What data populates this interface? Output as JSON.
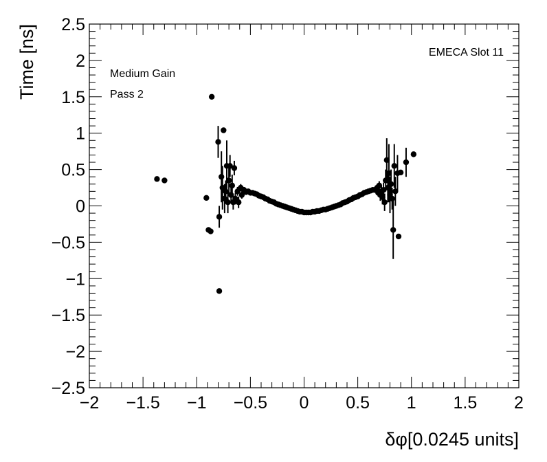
{
  "chart_data": {
    "type": "scatter",
    "xlabel": "δφ[0.0245 units]",
    "ylabel": "Time [ns]",
    "xlim": [
      -2,
      2
    ],
    "ylim": [
      -2.5,
      2.5
    ],
    "x_ticks": [
      -2,
      -1.5,
      -1,
      -0.5,
      0,
      0.5,
      1,
      1.5,
      2
    ],
    "x_tick_labels": [
      "−2",
      "−1.5",
      "−1",
      "−0.5",
      "0",
      "0.5",
      "1",
      "1.5",
      "2"
    ],
    "y_ticks": [
      2.5,
      2,
      1.5,
      1,
      0.5,
      0,
      -0.5,
      -1,
      -1.5,
      -2,
      -2.5
    ],
    "y_tick_labels": [
      "2.5",
      "2",
      "1.5",
      "1",
      "0.5",
      "0",
      "−0.5",
      "−1",
      "−1.5",
      "−2",
      "−2.5"
    ],
    "grid": false,
    "annotations": {
      "label_right": "EMECA Slot 11",
      "label_left_1": "Medium Gain",
      "label_left_2": "Pass 2"
    },
    "points": [
      {
        "x": -1.37,
        "y": 0.37,
        "err": 0
      },
      {
        "x": -1.3,
        "y": 0.35,
        "err": 0
      },
      {
        "x": -0.91,
        "y": 0.11,
        "err": 0
      },
      {
        "x": -0.89,
        "y": -0.33,
        "err": 0
      },
      {
        "x": -0.87,
        "y": -0.35,
        "err": 0
      },
      {
        "x": -0.86,
        "y": 1.5,
        "err": 0
      },
      {
        "x": -0.8,
        "y": 0.88,
        "err": 0.22
      },
      {
        "x": -0.79,
        "y": -0.15,
        "err": 0.15
      },
      {
        "x": -0.79,
        "y": -1.17,
        "err": 0
      },
      {
        "x": -0.77,
        "y": 0.4,
        "err": 0.35
      },
      {
        "x": -0.76,
        "y": 0.25,
        "err": 0.3
      },
      {
        "x": -0.75,
        "y": 1.04,
        "err": 0
      },
      {
        "x": -0.74,
        "y": 0.1,
        "err": 0.2
      },
      {
        "x": -0.73,
        "y": 0.2,
        "err": 0.15
      },
      {
        "x": -0.72,
        "y": 0.55,
        "err": 0.35
      },
      {
        "x": -0.71,
        "y": 0.05,
        "err": 0.15
      },
      {
        "x": -0.7,
        "y": 0.35,
        "err": 0.2
      },
      {
        "x": -0.69,
        "y": 0.55,
        "err": 0.15
      },
      {
        "x": -0.68,
        "y": 0.15,
        "err": 0.1
      },
      {
        "x": -0.67,
        "y": 0.28,
        "err": 0.15
      },
      {
        "x": -0.66,
        "y": 0.05,
        "err": 0.1
      },
      {
        "x": -0.65,
        "y": 0.52,
        "err": 0.1
      },
      {
        "x": -0.64,
        "y": 0.1,
        "err": 0.08
      },
      {
        "x": -0.62,
        "y": 0.2,
        "err": 0.06
      },
      {
        "x": -0.61,
        "y": 0.05,
        "err": 0.08
      },
      {
        "x": -0.59,
        "y": 0.25,
        "err": 0.05
      },
      {
        "x": -0.58,
        "y": 0.15,
        "err": 0.05
      },
      {
        "x": -0.56,
        "y": 0.22,
        "err": 0.04
      },
      {
        "x": -0.54,
        "y": 0.19,
        "err": 0.03
      },
      {
        "x": -0.52,
        "y": 0.2,
        "err": 0.03
      },
      {
        "x": -0.5,
        "y": 0.18,
        "err": 0.02
      },
      {
        "x": -0.48,
        "y": 0.18,
        "err": 0.02
      },
      {
        "x": -0.46,
        "y": 0.17,
        "err": 0.02
      },
      {
        "x": -0.44,
        "y": 0.16,
        "err": 0.02
      },
      {
        "x": -0.42,
        "y": 0.14,
        "err": 0
      },
      {
        "x": -0.4,
        "y": 0.13,
        "err": 0
      },
      {
        "x": -0.38,
        "y": 0.12,
        "err": 0
      },
      {
        "x": -0.36,
        "y": 0.1,
        "err": 0
      },
      {
        "x": -0.34,
        "y": 0.09,
        "err": 0
      },
      {
        "x": -0.32,
        "y": 0.07,
        "err": 0
      },
      {
        "x": -0.3,
        "y": 0.06,
        "err": 0
      },
      {
        "x": -0.28,
        "y": 0.05,
        "err": 0
      },
      {
        "x": -0.26,
        "y": 0.03,
        "err": 0
      },
      {
        "x": -0.24,
        "y": 0.02,
        "err": 0
      },
      {
        "x": -0.22,
        "y": 0.01,
        "err": 0
      },
      {
        "x": -0.2,
        "y": 0.0,
        "err": 0
      },
      {
        "x": -0.18,
        "y": -0.01,
        "err": 0
      },
      {
        "x": -0.16,
        "y": -0.02,
        "err": 0
      },
      {
        "x": -0.14,
        "y": -0.03,
        "err": 0
      },
      {
        "x": -0.12,
        "y": -0.04,
        "err": 0
      },
      {
        "x": -0.1,
        "y": -0.05,
        "err": 0
      },
      {
        "x": -0.08,
        "y": -0.06,
        "err": 0
      },
      {
        "x": -0.06,
        "y": -0.07,
        "err": 0
      },
      {
        "x": -0.04,
        "y": -0.08,
        "err": 0
      },
      {
        "x": -0.02,
        "y": -0.08,
        "err": 0
      },
      {
        "x": 0.0,
        "y": -0.09,
        "err": 0
      },
      {
        "x": 0.02,
        "y": -0.09,
        "err": 0
      },
      {
        "x": 0.04,
        "y": -0.09,
        "err": 0
      },
      {
        "x": 0.06,
        "y": -0.09,
        "err": 0
      },
      {
        "x": 0.08,
        "y": -0.08,
        "err": 0
      },
      {
        "x": 0.1,
        "y": -0.08,
        "err": 0
      },
      {
        "x": 0.12,
        "y": -0.07,
        "err": 0
      },
      {
        "x": 0.14,
        "y": -0.07,
        "err": 0
      },
      {
        "x": 0.16,
        "y": -0.06,
        "err": 0
      },
      {
        "x": -0.18,
        "y": -0.01,
        "err": 0
      },
      {
        "x": 0.18,
        "y": -0.05,
        "err": 0
      },
      {
        "x": 0.2,
        "y": -0.05,
        "err": 0
      },
      {
        "x": 0.22,
        "y": -0.04,
        "err": 0
      },
      {
        "x": 0.24,
        "y": -0.03,
        "err": 0
      },
      {
        "x": 0.26,
        "y": -0.02,
        "err": 0
      },
      {
        "x": 0.28,
        "y": -0.01,
        "err": 0
      },
      {
        "x": 0.3,
        "y": 0.0,
        "err": 0
      },
      {
        "x": 0.32,
        "y": 0.01,
        "err": 0
      },
      {
        "x": 0.34,
        "y": 0.02,
        "err": 0
      },
      {
        "x": 0.36,
        "y": 0.04,
        "err": 0
      },
      {
        "x": 0.38,
        "y": 0.05,
        "err": 0
      },
      {
        "x": 0.4,
        "y": 0.06,
        "err": 0
      },
      {
        "x": 0.42,
        "y": 0.08,
        "err": 0
      },
      {
        "x": 0.44,
        "y": 0.09,
        "err": 0
      },
      {
        "x": 0.46,
        "y": 0.11,
        "err": 0
      },
      {
        "x": 0.48,
        "y": 0.12,
        "err": 0
      },
      {
        "x": 0.5,
        "y": 0.13,
        "err": 0
      },
      {
        "x": 0.52,
        "y": 0.15,
        "err": 0.02
      },
      {
        "x": 0.54,
        "y": 0.16,
        "err": 0.02
      },
      {
        "x": 0.56,
        "y": 0.18,
        "err": 0.02
      },
      {
        "x": 0.58,
        "y": 0.19,
        "err": 0.02
      },
      {
        "x": 0.6,
        "y": 0.2,
        "err": 0.03
      },
      {
        "x": 0.62,
        "y": 0.21,
        "err": 0.03
      },
      {
        "x": 0.64,
        "y": 0.22,
        "err": 0.03
      },
      {
        "x": 0.66,
        "y": 0.22,
        "err": 0.04
      },
      {
        "x": 0.68,
        "y": 0.25,
        "err": 0.05
      },
      {
        "x": 0.69,
        "y": 0.18,
        "err": 0.05
      },
      {
        "x": 0.7,
        "y": 0.28,
        "err": 0.06
      },
      {
        "x": 0.71,
        "y": 0.15,
        "err": 0.08
      },
      {
        "x": 0.72,
        "y": 0.2,
        "err": 0.08
      },
      {
        "x": 0.73,
        "y": 0.12,
        "err": 0.1
      },
      {
        "x": 0.74,
        "y": 0.22,
        "err": 0.1
      },
      {
        "x": 0.75,
        "y": 0.05,
        "err": 0.12
      },
      {
        "x": 0.76,
        "y": 0.35,
        "err": 0.15
      },
      {
        "x": 0.77,
        "y": 0.63,
        "err": 0.3
      },
      {
        "x": 0.78,
        "y": 0.25,
        "err": 0.2
      },
      {
        "x": 0.79,
        "y": 0.45,
        "err": 0.4
      },
      {
        "x": 0.8,
        "y": 0.15,
        "err": 0.25
      },
      {
        "x": 0.81,
        "y": 0.3,
        "err": 0.2
      },
      {
        "x": 0.82,
        "y": 0.1,
        "err": 0.15
      },
      {
        "x": 0.83,
        "y": -0.33,
        "err": 0.4
      },
      {
        "x": 0.84,
        "y": 0.55,
        "err": 0.3
      },
      {
        "x": 0.85,
        "y": 0.2,
        "err": 0.2
      },
      {
        "x": 0.87,
        "y": 0.45,
        "err": 0.25
      },
      {
        "x": 0.88,
        "y": -0.42,
        "err": 0
      },
      {
        "x": 0.9,
        "y": 0.46,
        "err": 0
      },
      {
        "x": 0.95,
        "y": 0.6,
        "err": 0.2
      },
      {
        "x": 1.02,
        "y": 0.71,
        "err": 0
      }
    ]
  }
}
